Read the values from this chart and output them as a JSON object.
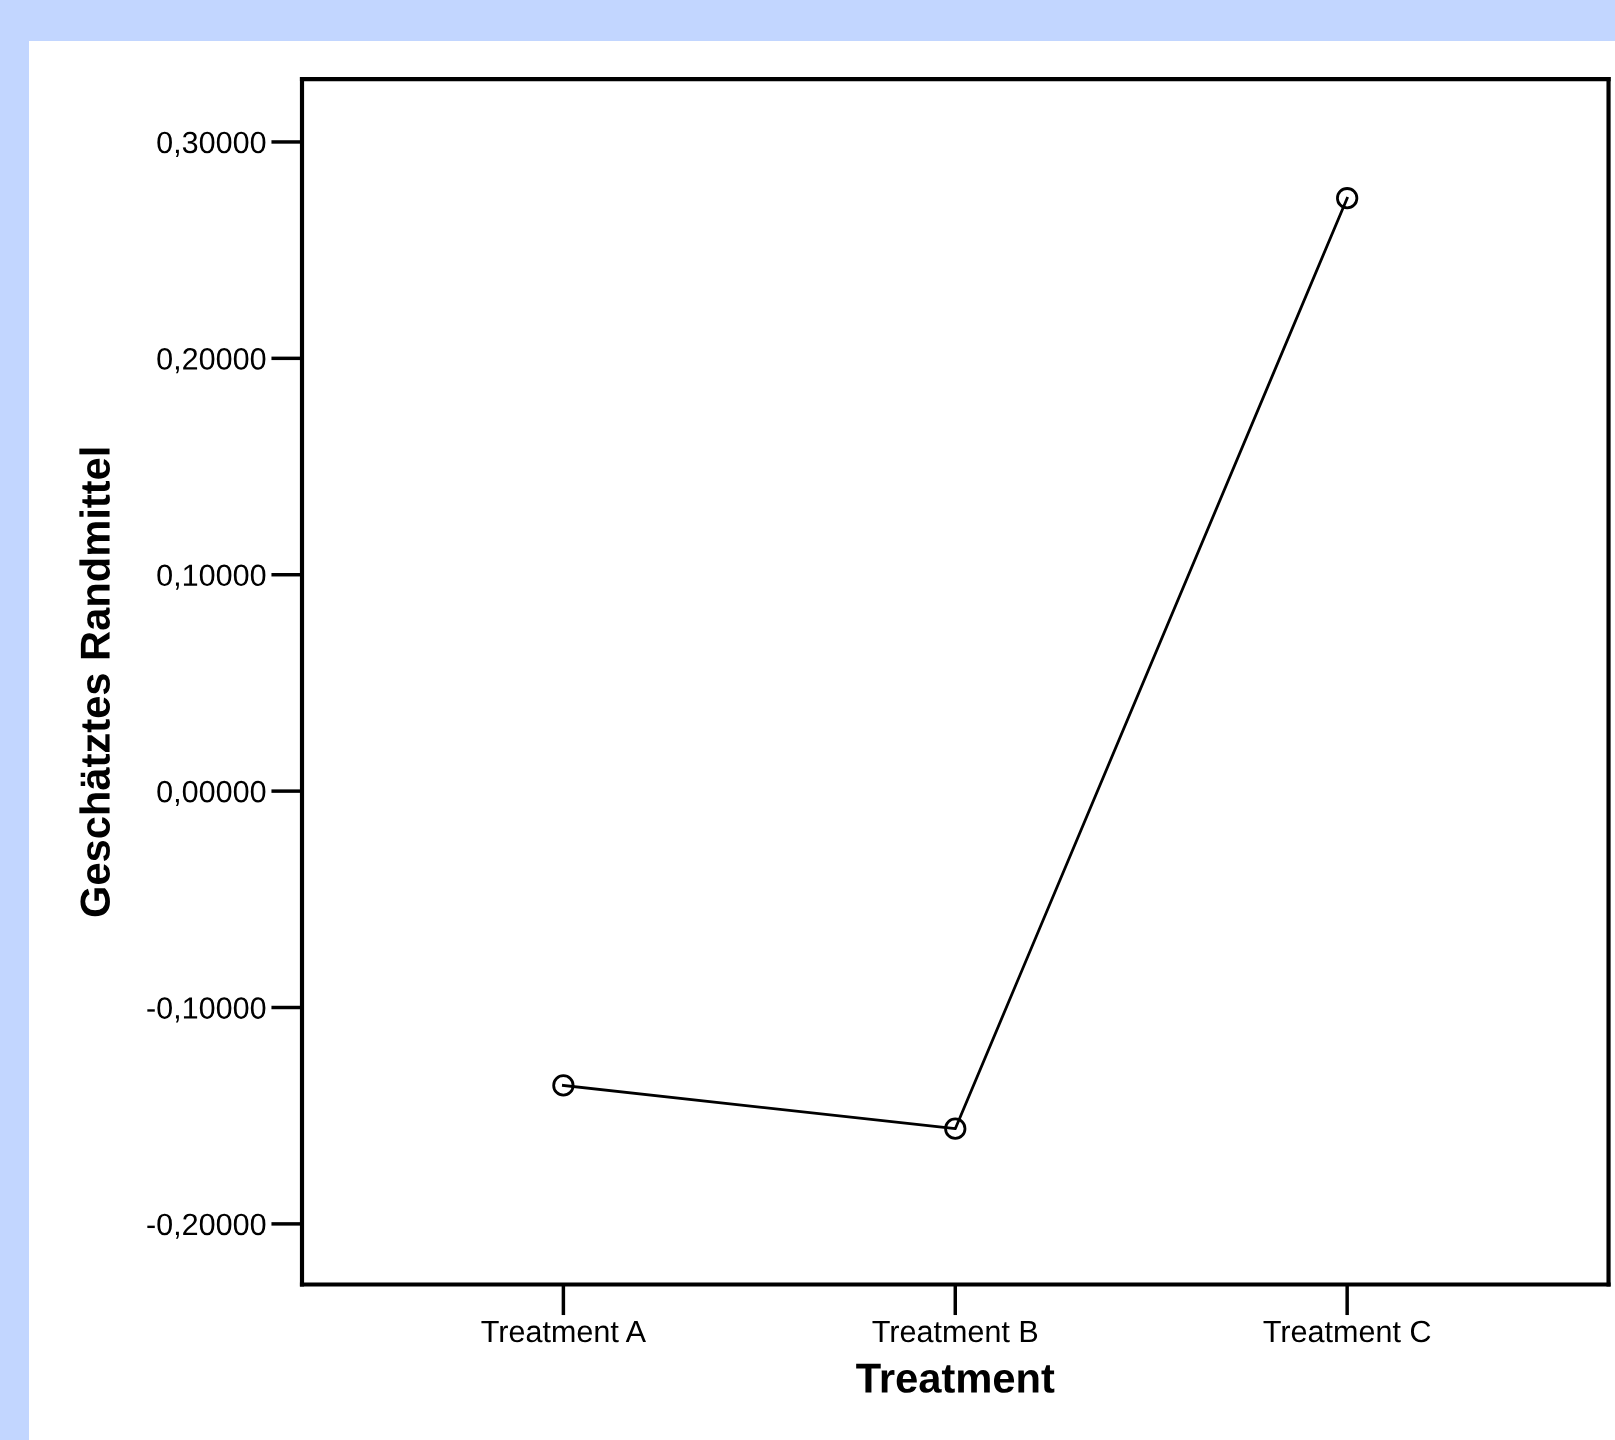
{
  "chart_data": {
    "type": "line",
    "xlabel": "Treatment",
    "ylabel": "Geschätztes Randmittel",
    "categories": [
      "Treatment A",
      "Treatment B",
      "Treatment C"
    ],
    "series": [
      {
        "color": "#000000",
        "values": [
          -0.136,
          -0.156,
          0.274
        ]
      }
    ],
    "ylim": [
      -0.228,
      0.329
    ],
    "yticks": [
      {
        "value": -0.2,
        "label": "-0,20000"
      },
      {
        "value": -0.1,
        "label": "-0,10000"
      },
      {
        "value": 0.0,
        "label": "0,00000"
      },
      {
        "value": 0.1,
        "label": "0,10000"
      },
      {
        "value": 0.2,
        "label": "0,20000"
      },
      {
        "value": 0.3,
        "label": "0,30000"
      }
    ],
    "grid": false,
    "marker": "circle",
    "line_style": "solid"
  }
}
